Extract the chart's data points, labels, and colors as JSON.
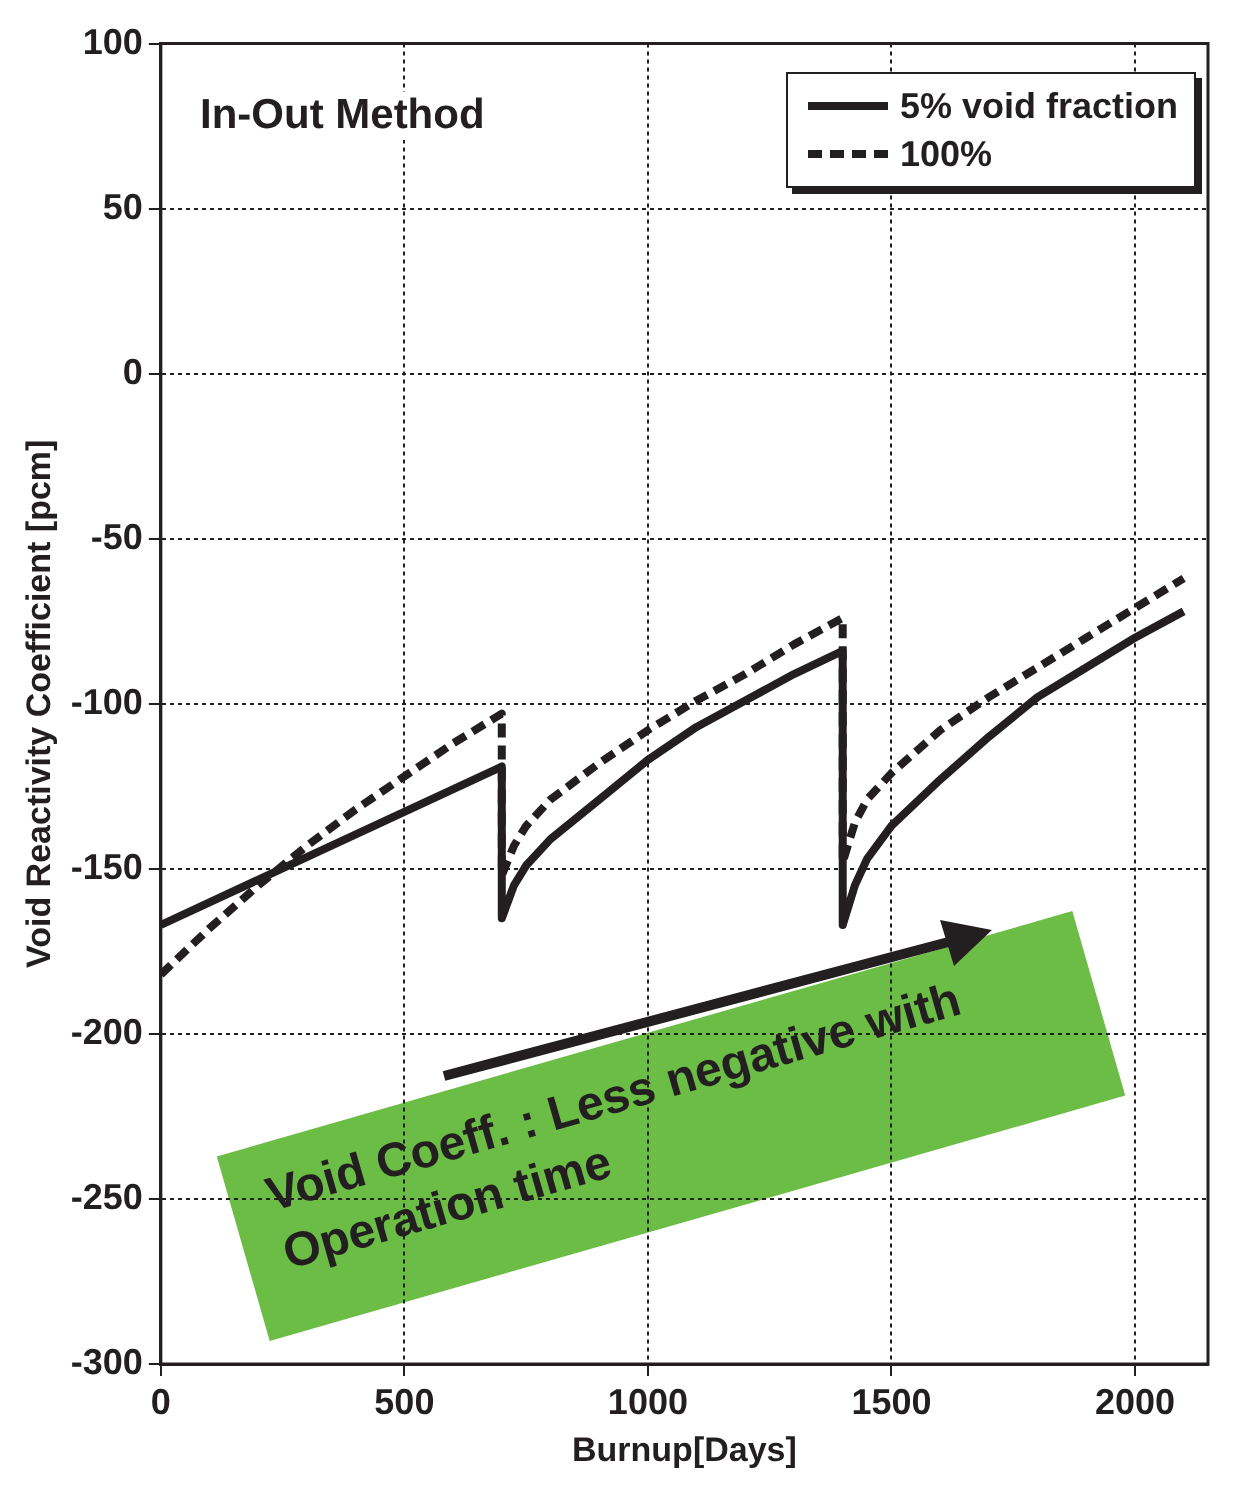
{
  "chart_data": {
    "type": "line",
    "xlabel": "Burnup[Days]",
    "ylabel": "Void Reactivity Coefficient [pcm]",
    "xlim": [
      0,
      2150
    ],
    "xticks": [
      0,
      500,
      1000,
      1500,
      2000
    ],
    "ylim": [
      -300,
      100
    ],
    "yticks": [
      -300,
      -250,
      -200,
      -150,
      -100,
      -50,
      0,
      50,
      100
    ],
    "grid": true,
    "legend": "top right",
    "marker": "none",
    "annotations": [
      "In-Out Method",
      "Void Coeff. : Less negative with Operation time"
    ],
    "series": [
      {
        "name": "5% void fraction",
        "color": "#231f20",
        "line_style": "solid",
        "x": [
          0,
          700,
          700,
          725,
          750,
          800,
          900,
          1000,
          1100,
          1200,
          1300,
          1400,
          1400,
          1425,
          1450,
          1500,
          1600,
          1700,
          1800,
          1900,
          2000,
          2100
        ],
        "values": [
          -167,
          -119,
          -165,
          -155,
          -149,
          -141,
          -129,
          -117,
          -107,
          -99,
          -91,
          -84,
          -167,
          -155,
          -147,
          -137,
          -123,
          -110,
          -98,
          -89,
          -80,
          -72
        ]
      },
      {
        "name": "100%",
        "color": "#231f20",
        "line_style": "dashed",
        "x": [
          0,
          100,
          200,
          300,
          400,
          500,
          600,
          700,
          700,
          725,
          750,
          800,
          900,
          1000,
          1100,
          1200,
          1300,
          1400,
          1400,
          1425,
          1450,
          1500,
          1600,
          1700,
          1800,
          1900,
          2000,
          2100
        ],
        "values": [
          -182,
          -168,
          -155,
          -143,
          -132,
          -122,
          -112,
          -103,
          -152,
          -143,
          -137,
          -129,
          -118,
          -108,
          -99,
          -91,
          -82,
          -74,
          -148,
          -136,
          -129,
          -121,
          -108,
          -98,
          -89,
          -80,
          -71,
          -62
        ]
      }
    ]
  }
}
